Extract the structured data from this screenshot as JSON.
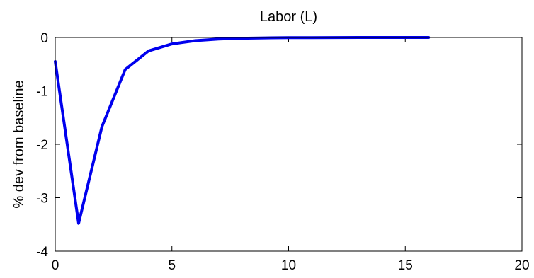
{
  "chart_data": {
    "type": "line",
    "title": "Labor (L)",
    "xlabel": "",
    "ylabel": "% dev from baseline",
    "xlim": [
      0,
      20
    ],
    "ylim": [
      -4,
      0
    ],
    "xticks": [
      0,
      5,
      10,
      15,
      20
    ],
    "yticks": [
      0,
      -1,
      -2,
      -3,
      -4
    ],
    "xtick_labels": [
      "0",
      "5",
      "10",
      "15",
      "20"
    ],
    "ytick_labels": [
      "0",
      "-1",
      "-2",
      "-3",
      "-4"
    ],
    "grid": false,
    "series": [
      {
        "color": "#0000ee",
        "x": [
          0,
          1,
          2,
          3,
          4,
          5,
          6,
          7,
          8,
          9,
          10,
          11,
          12,
          13,
          14,
          15,
          16
        ],
        "y": [
          -0.45,
          -3.48,
          -1.67,
          -0.6,
          -0.25,
          -0.12,
          -0.06,
          -0.03,
          -0.015,
          -0.008,
          -0.004,
          -0.002,
          -0.001,
          0.0,
          0.0,
          0.0,
          0.0
        ]
      }
    ]
  }
}
